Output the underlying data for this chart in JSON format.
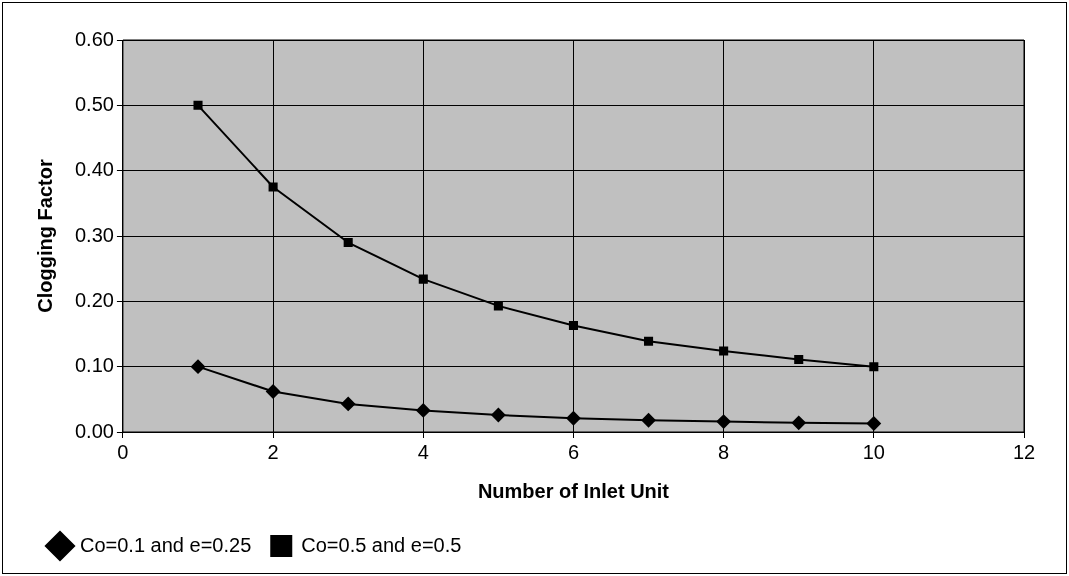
{
  "chart_data": {
    "type": "line",
    "xlabel": "Number of Inlet Unit",
    "ylabel": "Clogging Factor",
    "x": [
      1,
      2,
      3,
      4,
      5,
      6,
      7,
      8,
      9,
      10
    ],
    "series": [
      {
        "name": "Co=0.1 and e=0.25",
        "color": "#000000",
        "marker": "diamond",
        "values": [
          0.1,
          0.062,
          0.043,
          0.033,
          0.026,
          0.021,
          0.018,
          0.016,
          0.014,
          0.013
        ]
      },
      {
        "name": "Co=0.5 and e=0.5",
        "color": "#000000",
        "marker": "square",
        "values": [
          0.5,
          0.375,
          0.29,
          0.234,
          0.193,
          0.163,
          0.139,
          0.124,
          0.111,
          0.1
        ]
      }
    ],
    "xlim": [
      0,
      12
    ],
    "xticks": [
      0,
      2,
      4,
      6,
      8,
      10,
      12
    ],
    "ylim": [
      0,
      0.6
    ],
    "yticks": [
      {
        "value": 0,
        "label": "0.00"
      },
      {
        "value": 0.1,
        "label": "0.10"
      },
      {
        "value": 0.2,
        "label": "0.20"
      },
      {
        "value": 0.3,
        "label": "0.30"
      },
      {
        "value": 0.4,
        "label": "0.40"
      },
      {
        "value": 0.5,
        "label": "0.50"
      },
      {
        "value": 0.6,
        "label": "0.60"
      }
    ],
    "grid": true,
    "legend": "bottom left",
    "line_style": "solid"
  }
}
